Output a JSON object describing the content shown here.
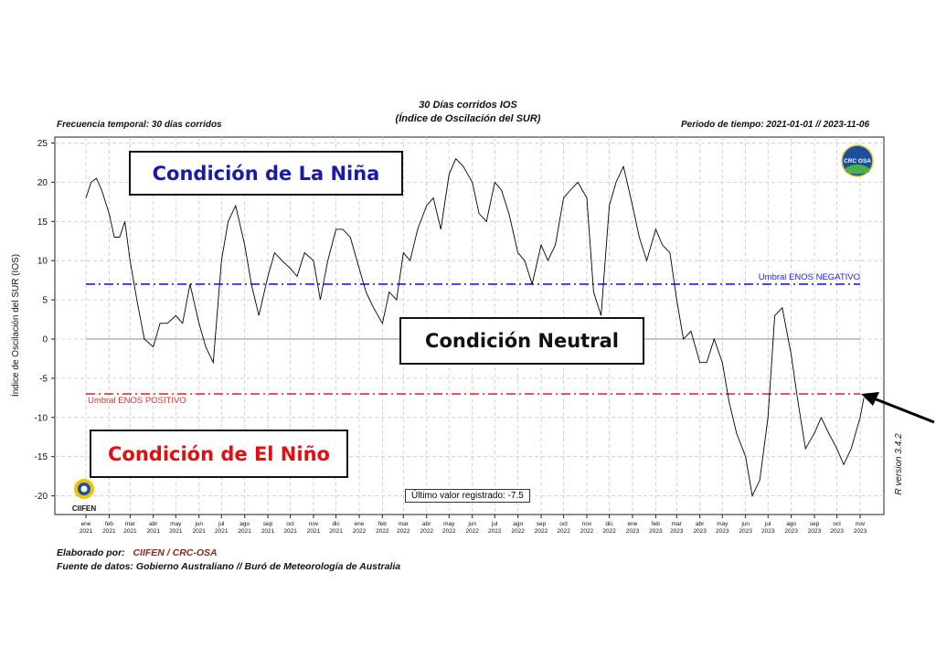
{
  "header": {
    "title_line1": "30 Días corridos IOS",
    "title_line2": "(Índice de Oscilación del SUR)",
    "frequency": "Frecuencia temporal: 30 días corridos",
    "period": "Periodo de tiempo: 2021-01-01 // 2023-11-06"
  },
  "conditions": {
    "la_nina": "Condición de La Niña",
    "neutral": "Condición Neutral",
    "el_nino": "Condición de El Niño"
  },
  "last_value": "Último valor registrado: -7.5",
  "logos": {
    "crc_osa": "CRC OSA",
    "ciifen": "CIIFEN"
  },
  "version": "R version 3.4.2",
  "footer": {
    "prepared_label": "Elaborado por:",
    "prepared_by": "CIIFEN / CRC-OSA",
    "source": "Fuente de datos: Gobierno Australiano // Buró de Meteorología de Australia"
  },
  "colors": {
    "negative_threshold": "#1a1aff",
    "positive_threshold": "#e03030",
    "la_nina_text": "#1a1aa8",
    "el_nino_text": "#e01010",
    "series": "#000000"
  },
  "chart_data": {
    "type": "line",
    "title": "30 Días corridos IOS",
    "subtitle": "(Índice de Oscilación del SUR)",
    "ylabel": "Índice de Oscilación del SUR (IOS)",
    "xlabel": "",
    "ylim": [
      -22,
      25
    ],
    "yticks": [
      -20,
      -15,
      -10,
      -5,
      0,
      5,
      10,
      15,
      20,
      25
    ],
    "grid": true,
    "x_ticks": [
      {
        "m": "ene",
        "y": "2021"
      },
      {
        "m": "feb",
        "y": "2021"
      },
      {
        "m": "mar",
        "y": "2021"
      },
      {
        "m": "abr",
        "y": "2021"
      },
      {
        "m": "may",
        "y": "2021"
      },
      {
        "m": "jun",
        "y": "2021"
      },
      {
        "m": "jul",
        "y": "2021"
      },
      {
        "m": "ago",
        "y": "2021"
      },
      {
        "m": "sep",
        "y": "2021"
      },
      {
        "m": "oct",
        "y": "2021"
      },
      {
        "m": "nov",
        "y": "2021"
      },
      {
        "m": "dic",
        "y": "2021"
      },
      {
        "m": "ene",
        "y": "2022"
      },
      {
        "m": "feb",
        "y": "2022"
      },
      {
        "m": "mar",
        "y": "2022"
      },
      {
        "m": "abr",
        "y": "2022"
      },
      {
        "m": "may",
        "y": "2022"
      },
      {
        "m": "jun",
        "y": "2022"
      },
      {
        "m": "jul",
        "y": "2022"
      },
      {
        "m": "ago",
        "y": "2022"
      },
      {
        "m": "sep",
        "y": "2022"
      },
      {
        "m": "oct",
        "y": "2022"
      },
      {
        "m": "nov",
        "y": "2022"
      },
      {
        "m": "dic",
        "y": "2022"
      },
      {
        "m": "ene",
        "y": "2023"
      },
      {
        "m": "feb",
        "y": "2023"
      },
      {
        "m": "mar",
        "y": "2023"
      },
      {
        "m": "abr",
        "y": "2023"
      },
      {
        "m": "may",
        "y": "2023"
      },
      {
        "m": "jun",
        "y": "2023"
      },
      {
        "m": "jul",
        "y": "2023"
      },
      {
        "m": "ago",
        "y": "2023"
      },
      {
        "m": "sep",
        "y": "2023"
      },
      {
        "m": "oct",
        "y": "2023"
      },
      {
        "m": "nov",
        "y": "2023"
      }
    ],
    "thresholds": [
      {
        "name": "Umbral ENOS NEGATIVO",
        "value": 7
      },
      {
        "name": "Umbral ENOS POSITIVO",
        "value": -7
      }
    ],
    "series": [
      {
        "x": [
          "2021-01-01",
          "2021-01-08",
          "2021-01-15",
          "2021-01-22",
          "2021-02-01",
          "2021-02-08",
          "2021-02-15",
          "2021-02-22",
          "2021-03-01",
          "2021-03-10",
          "2021-03-20",
          "2021-04-01",
          "2021-04-10",
          "2021-04-20",
          "2021-05-01",
          "2021-05-10",
          "2021-05-20",
          "2021-06-01",
          "2021-06-10",
          "2021-06-20",
          "2021-07-01",
          "2021-07-10",
          "2021-07-20",
          "2021-08-01",
          "2021-08-10",
          "2021-08-20",
          "2021-09-01",
          "2021-09-10",
          "2021-09-20",
          "2021-10-01",
          "2021-10-10",
          "2021-10-20",
          "2021-11-01",
          "2021-11-10",
          "2021-11-20",
          "2021-12-01",
          "2021-12-10",
          "2021-12-20",
          "2022-01-01",
          "2022-01-10",
          "2022-01-20",
          "2022-02-01",
          "2022-02-10",
          "2022-02-20",
          "2022-03-01",
          "2022-03-10",
          "2022-03-20",
          "2022-04-01",
          "2022-04-10",
          "2022-04-20",
          "2022-05-01",
          "2022-05-10",
          "2022-05-20",
          "2022-06-01",
          "2022-06-10",
          "2022-06-20",
          "2022-07-01",
          "2022-07-10",
          "2022-07-20",
          "2022-08-01",
          "2022-08-10",
          "2022-08-20",
          "2022-09-01",
          "2022-09-10",
          "2022-09-20",
          "2022-10-01",
          "2022-10-10",
          "2022-10-20",
          "2022-11-01",
          "2022-11-10",
          "2022-11-20",
          "2022-12-01",
          "2022-12-10",
          "2022-12-20",
          "2023-01-01",
          "2023-01-10",
          "2023-01-20",
          "2023-02-01",
          "2023-02-10",
          "2023-02-20",
          "2023-03-01",
          "2023-03-10",
          "2023-03-20",
          "2023-04-01",
          "2023-04-10",
          "2023-04-20",
          "2023-05-01",
          "2023-05-10",
          "2023-05-20",
          "2023-06-01",
          "2023-06-10",
          "2023-06-20",
          "2023-07-01",
          "2023-07-10",
          "2023-07-20",
          "2023-08-01",
          "2023-08-10",
          "2023-08-20",
          "2023-09-01",
          "2023-09-10",
          "2023-09-20",
          "2023-10-01",
          "2023-10-10",
          "2023-10-20",
          "2023-11-01",
          "2023-11-06"
        ],
        "values": [
          18,
          20,
          20.5,
          19,
          16,
          13,
          13,
          15,
          10,
          5,
          0,
          -1,
          2,
          2,
          3,
          2,
          7,
          2,
          -1,
          -3,
          10,
          15,
          17,
          12,
          7,
          3,
          8,
          11,
          10,
          9,
          8,
          11,
          10,
          5,
          10,
          14,
          14,
          13,
          9,
          6,
          4,
          2,
          6,
          5,
          11,
          10,
          14,
          17,
          18,
          14,
          21,
          23,
          22,
          20,
          16,
          15,
          20,
          19,
          16,
          11,
          10,
          7,
          12,
          10,
          12,
          18,
          19,
          20,
          18,
          6,
          3,
          17,
          20,
          22,
          17,
          13,
          10,
          14,
          12,
          11,
          5,
          0,
          1,
          -3,
          -3,
          0,
          -3,
          -8,
          -12,
          -15,
          -20,
          -18,
          -10,
          3,
          4,
          -2,
          -8,
          -14,
          -12,
          -10,
          -12,
          -14,
          -16,
          -14,
          -10,
          -7.5
        ]
      }
    ]
  }
}
